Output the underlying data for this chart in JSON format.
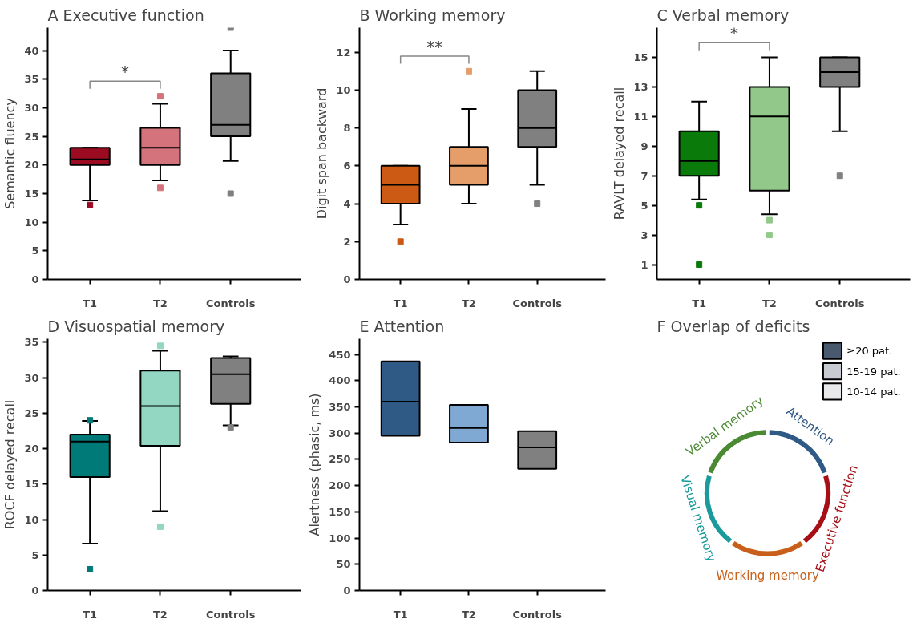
{
  "chart_data": [
    {
      "type": "box",
      "title": "A  Executive function",
      "ylabel": "Semantic fluency",
      "categories": [
        "T1",
        "T2",
        "Controls"
      ],
      "colors": [
        "#9b0b22",
        "#d4737c",
        "#808080"
      ],
      "ylim": [
        0,
        44
      ],
      "yticks": [
        0,
        5,
        10,
        15,
        20,
        25,
        30,
        35,
        40
      ],
      "annotations": [
        "*"
      ],
      "boxes": [
        {
          "low": 13.8,
          "q1": 20,
          "median": 21,
          "q3": 23,
          "high": 23,
          "outliers": [
            13
          ]
        },
        {
          "low": 17.3,
          "q1": 20,
          "median": 23,
          "q3": 26.5,
          "high": 30.7,
          "outliers": [
            16,
            32
          ]
        },
        {
          "low": 20.7,
          "q1": 25,
          "median": 27,
          "q3": 36,
          "high": 40,
          "outliers": [
            15,
            44
          ]
        }
      ]
    },
    {
      "type": "box",
      "title": "B  Working memory",
      "ylabel": "Digit span backward",
      "categories": [
        "T1",
        "T2",
        "Controls"
      ],
      "colors": [
        "#cc5a14",
        "#e59e6a",
        "#808080"
      ],
      "ylim": [
        0,
        13.3
      ],
      "yticks": [
        0,
        2,
        4,
        6,
        8,
        10,
        12
      ],
      "annotations": [
        "**"
      ],
      "boxes": [
        {
          "low": 2.9,
          "q1": 4,
          "median": 5,
          "q3": 6,
          "high": 6,
          "outliers": [
            2
          ]
        },
        {
          "low": 4,
          "q1": 5,
          "median": 6,
          "q3": 7,
          "high": 9,
          "outliers": [
            11
          ]
        },
        {
          "low": 5,
          "q1": 7,
          "median": 8,
          "q3": 10,
          "high": 11,
          "outliers": [
            4
          ]
        }
      ]
    },
    {
      "type": "box",
      "title": "C  Verbal memory",
      "ylabel": "RAVLT delayed recall",
      "categories": [
        "T1",
        "T2",
        "Controls"
      ],
      "colors": [
        "#0a7a0a",
        "#92c98a",
        "#808080"
      ],
      "ylim": [
        0,
        17
      ],
      "yticks": [
        1,
        3,
        5,
        7,
        9,
        11,
        13,
        15
      ],
      "annotations": [
        "*"
      ],
      "boxes": [
        {
          "low": 5.4,
          "q1": 7,
          "median": 8,
          "q3": 10,
          "high": 12,
          "outliers": [
            5,
            1
          ]
        },
        {
          "low": 4.4,
          "q1": 6,
          "median": 11,
          "q3": 13,
          "high": 15,
          "outliers": [
            4,
            3
          ]
        },
        {
          "low": 10,
          "q1": 13,
          "median": 14,
          "q3": 15,
          "high": 15,
          "outliers": [
            7
          ]
        }
      ]
    },
    {
      "type": "box",
      "title": "D  Visuospatial memory",
      "ylabel": "ROCF delayed recall",
      "categories": [
        "T1",
        "T2",
        "Controls"
      ],
      "colors": [
        "#007a78",
        "#93d6c1",
        "#808080"
      ],
      "ylim": [
        0,
        35.5
      ],
      "yticks": [
        0,
        5,
        10,
        15,
        20,
        25,
        30,
        35
      ],
      "boxes": [
        {
          "low": 6.6,
          "q1": 16,
          "median": 21,
          "q3": 22,
          "high": 23.9,
          "outliers": [
            24,
            3
          ]
        },
        {
          "low": 11.2,
          "q1": 20.4,
          "median": 26,
          "q3": 31,
          "high": 33.8,
          "outliers": [
            34.5,
            9
          ]
        },
        {
          "low": 23.3,
          "q1": 26.3,
          "median": 30.5,
          "q3": 32.8,
          "high": 33,
          "outliers": [
            23
          ]
        }
      ]
    },
    {
      "type": "box",
      "title": "E  Attention",
      "ylabel": "Alertness (phasic, ms)",
      "categories": [
        "T1",
        "T2",
        "Controls"
      ],
      "colors": [
        "#2e5a85",
        "#7fa9d2",
        "#808080"
      ],
      "ylim": [
        0,
        480
      ],
      "yticks": [
        0,
        50,
        100,
        150,
        200,
        250,
        300,
        350,
        400,
        450
      ],
      "boxes": [
        {
          "q1": 295,
          "median": 360,
          "q3": 437
        },
        {
          "q1": 282,
          "median": 310,
          "q3": 354
        },
        {
          "q1": 232,
          "median": 273,
          "q3": 304
        }
      ]
    },
    {
      "type": "other",
      "title": "F  Overlap of deficits",
      "categories": [
        "Attention",
        "Executive function",
        "Working memory",
        "Visual memory",
        "Verbal memory"
      ],
      "colors": [
        "#2e5a85",
        "#a50f15",
        "#c8601b",
        "#1a9a9a",
        "#4a8a32"
      ],
      "legend": "top right",
      "series": [
        {
          "name": "≥20 pat.",
          "color": "#4a5a6e",
          "values": [
            null,
            null,
            null,
            null,
            null
          ]
        },
        {
          "name": "15-19 pat.",
          "color": "#c8ccd2",
          "values": [
            null,
            null,
            null,
            null,
            null
          ]
        },
        {
          "name": "10-14 pat.",
          "color": "#e8e9ea",
          "values": [
            null,
            null,
            null,
            null,
            null
          ]
        }
      ]
    }
  ]
}
